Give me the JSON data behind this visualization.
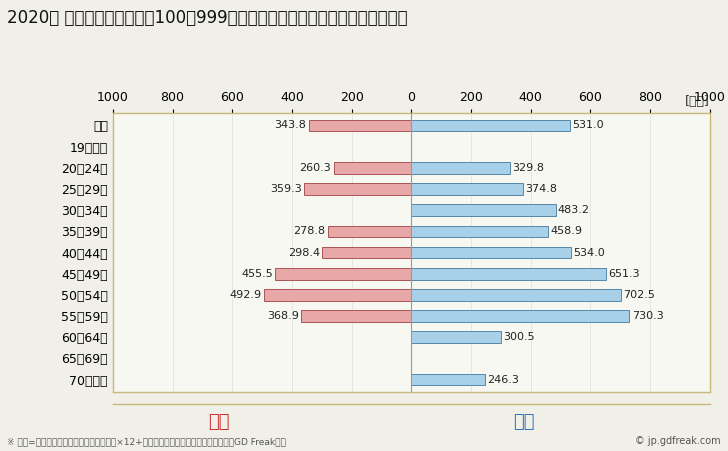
{
  "title": "2020年 民間企業（従業者数100〜999人）フルタイム労働者の男女別平均年収",
  "unit_label": "[万円]",
  "categories": [
    "全体",
    "19歳以下",
    "20〜24歳",
    "25〜29歳",
    "30〜34歳",
    "35〜39歳",
    "40〜44歳",
    "45〜49歳",
    "50〜54歳",
    "55〜59歳",
    "60〜64歳",
    "65〜69歳",
    "70歳以上"
  ],
  "female_values": [
    343.8,
    0,
    260.3,
    359.3,
    0,
    278.8,
    298.4,
    455.5,
    492.9,
    368.9,
    0,
    0,
    0
  ],
  "male_values": [
    531.0,
    0,
    329.8,
    374.8,
    483.2,
    458.9,
    534.0,
    651.3,
    702.5,
    730.3,
    300.5,
    0,
    246.3
  ],
  "female_color": "#e8a8a8",
  "male_color": "#a8d0e8",
  "female_label": "女性",
  "male_label": "男性",
  "female_label_color": "#cc3333",
  "male_label_color": "#3377bb",
  "bar_edge_color": "#5588aa",
  "female_edge_color": "#aa5555",
  "xlim": [
    -1000,
    1000
  ],
  "xticks": [
    -1000,
    -800,
    -600,
    -400,
    -200,
    0,
    200,
    400,
    600,
    800,
    1000
  ],
  "xticklabels": [
    "1000",
    "800",
    "600",
    "400",
    "200",
    "0",
    "200",
    "400",
    "600",
    "800",
    "1000"
  ],
  "footnote": "※ 年収=「きまって支給する現金給与額」×12+「年間賞与その他特別給与額」としてGD Freak推計",
  "copyright": "© jp.gdfreak.com",
  "bg_color": "#f0efe8",
  "plot_bg_color": "#f8f8f2",
  "border_color": "#c8b87a",
  "title_fontsize": 12,
  "tick_fontsize": 9,
  "annot_fontsize": 8,
  "legend_fontsize": 13
}
